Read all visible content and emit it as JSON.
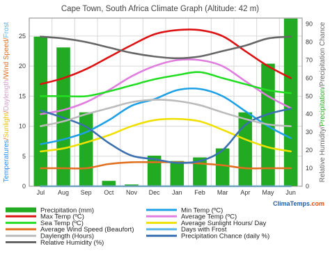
{
  "chart_data": {
    "type": "bar+line",
    "title": "Cape Town, South Africa Climate Graph (Altitude: 42 m)",
    "categories": [
      "Jul",
      "Aug",
      "Sep",
      "Oct",
      "Nov",
      "Dec",
      "Jan",
      "Feb",
      "Mar",
      "Apr",
      "May",
      "Jun"
    ],
    "ylim_left": [
      0,
      28
    ],
    "ylim_right": [
      0,
      93.3
    ],
    "left_ticks": [
      0,
      5,
      10,
      15,
      20,
      25
    ],
    "right_ticks": [
      0,
      10,
      20,
      30,
      40,
      50,
      60,
      70,
      80,
      90
    ],
    "ylabel_left": {
      "parts": [
        {
          "text": "Temperatures",
          "color": "#1e90ff"
        },
        {
          "text": "/",
          "color": "#e07020"
        },
        {
          "text": "Sunlight",
          "color": "#e6c200"
        },
        {
          "text": "/",
          "color": "#e07020"
        },
        {
          "text": "Daylength",
          "color": "#d2a0c8"
        },
        {
          "text": "/",
          "color": "#e07020"
        },
        {
          "text": "Wind Speed",
          "color": "#e07020"
        },
        {
          "text": "/",
          "color": "#e07020"
        },
        {
          "text": "Frost",
          "color": "#5ab4e6"
        }
      ]
    },
    "ylabel_right": {
      "parts": [
        {
          "text": "Relative Humidity",
          "color": "#666666"
        },
        {
          "text": "/",
          "color": "#666666"
        },
        {
          "text": "Precipitation",
          "color": "#22aa22"
        },
        {
          "text": "/",
          "color": "#666666"
        },
        {
          "text": "Precipitation Chance",
          "color": "#666666"
        }
      ]
    },
    "bars": {
      "name": "Precipitation (mm)",
      "color": "#22aa22",
      "axis": "right",
      "values": [
        83,
        77,
        41,
        3,
        1,
        17,
        14,
        16,
        21,
        41,
        68,
        93
      ]
    },
    "series": [
      {
        "name": "Min Temp (ºC)",
        "color": "#1ea0e6",
        "axis": "left",
        "values": [
          7,
          7.8,
          9,
          11,
          13.4,
          14.5,
          16,
          16.2,
          15,
          12.5,
          10,
          8
        ]
      },
      {
        "name": "Max Temp (ºC)",
        "color": "#dd1111",
        "axis": "left",
        "values": [
          17,
          18,
          19.5,
          21.5,
          23.5,
          25.3,
          26,
          26,
          25,
          22.5,
          20,
          18
        ]
      },
      {
        "name": "Average Temp (ºC)",
        "color": "#e07ee0",
        "axis": "left",
        "values": [
          12,
          12.7,
          14,
          16,
          18.3,
          20,
          21,
          21,
          20,
          17.5,
          15,
          13
        ]
      },
      {
        "name": "Average Sunlight Hours/ Day",
        "color": "#f0e000",
        "axis": "left",
        "values": [
          5.8,
          6.3,
          7.3,
          8.5,
          10,
          11,
          11.2,
          10.8,
          9.4,
          7.8,
          6.5,
          5.8
        ]
      },
      {
        "name": "Sea Temp (ºC)",
        "color": "#22dd22",
        "axis": "left",
        "values": [
          15,
          15,
          15,
          15.8,
          16.8,
          17.8,
          18.5,
          19,
          18,
          17,
          16,
          15.5
        ]
      },
      {
        "name": "Days with Frost",
        "color": "#5ab4e6",
        "axis": "left",
        "values": [
          0,
          0,
          0,
          0,
          0,
          0,
          0,
          0,
          0,
          0,
          0,
          0
        ]
      },
      {
        "name": "Average Wind Speed (Beaufort)",
        "color": "#e07020",
        "axis": "left",
        "values": [
          3,
          3,
          3,
          3.7,
          4,
          4,
          4,
          3.8,
          3.5,
          3,
          3,
          3
        ]
      },
      {
        "name": "Precipitation Chance (daily %)",
        "color": "#3a6fb0",
        "axis": "right",
        "values": [
          42,
          38,
          33,
          24,
          17,
          15,
          13,
          14,
          20,
          34,
          40,
          43
        ]
      },
      {
        "name": "Daylength (Hours)",
        "color": "#bbbbbb",
        "axis": "left",
        "values": [
          10,
          10.8,
          12,
          13,
          14,
          14.4,
          14.2,
          13.5,
          12.3,
          11.2,
          10.3,
          10
        ]
      },
      {
        "name": "Relative Humidity (%)",
        "color": "#666666",
        "axis": "right",
        "values": [
          83,
          82,
          80,
          77,
          74,
          72,
          71,
          72,
          75,
          78,
          82,
          83
        ]
      }
    ],
    "legend": {
      "placement": "bottom",
      "order": [
        "Precipitation (mm)",
        "Min Temp (ºC)",
        "Max Temp (ºC)",
        "Average Temp (ºC)",
        "Sea Temp (ºC)",
        "Average Sunlight Hours/ Day",
        "Average Wind Speed (Beaufort)",
        "Days with Frost",
        "Daylength (Hours)",
        "Precipitation Chance (daily %)",
        "Relative Humidity (%)"
      ]
    },
    "grid": true,
    "brand": {
      "text_a": "Clima",
      "text_b": "Temps",
      "text_c": ".com",
      "color_a": "#1a5fb4",
      "color_b": "#1a5fb4",
      "color_c": "#e05010"
    }
  }
}
